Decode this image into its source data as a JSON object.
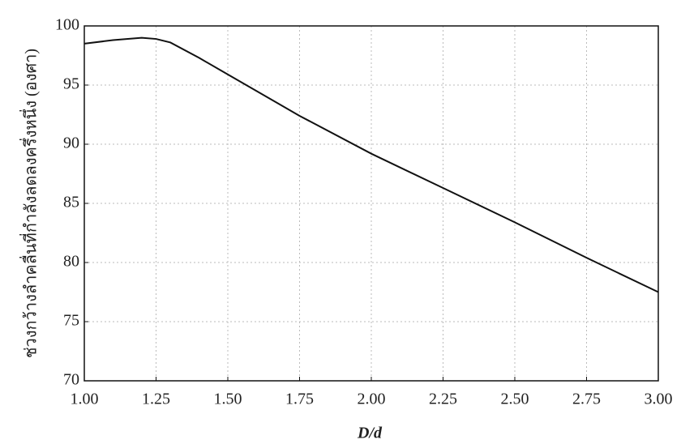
{
  "chart_data": {
    "type": "line",
    "x_label": "D/d",
    "y_label": "ช่วงกว้างลำคลื่นที่กำลังลดลงครึ่งหนึ่ง (องศา)",
    "x": [
      1.0,
      1.1,
      1.2,
      1.25,
      1.3,
      1.4,
      1.5,
      1.75,
      2.0,
      2.25,
      2.5,
      2.75,
      3.0
    ],
    "series": [
      {
        "color": "#111111",
        "values": [
          98.5,
          98.8,
          99.0,
          98.9,
          98.6,
          97.3,
          95.9,
          92.4,
          89.2,
          86.3,
          83.4,
          80.4,
          77.5
        ]
      }
    ],
    "xlim": [
      1.0,
      3.0
    ],
    "xticks": [
      {
        "value": 1.0,
        "label": "1.00"
      },
      {
        "value": 1.25,
        "label": "1.25"
      },
      {
        "value": 1.5,
        "label": "1.50"
      },
      {
        "value": 1.75,
        "label": "1.75"
      },
      {
        "value": 2.0,
        "label": "2.00"
      },
      {
        "value": 2.25,
        "label": "2.25"
      },
      {
        "value": 2.5,
        "label": "2.50"
      },
      {
        "value": 2.75,
        "label": "2.75"
      },
      {
        "value": 3.0,
        "label": "3.00"
      }
    ],
    "ylim": [
      70,
      100
    ],
    "yticks": [
      70,
      75,
      80,
      85,
      90,
      95,
      100
    ],
    "grid": true
  }
}
